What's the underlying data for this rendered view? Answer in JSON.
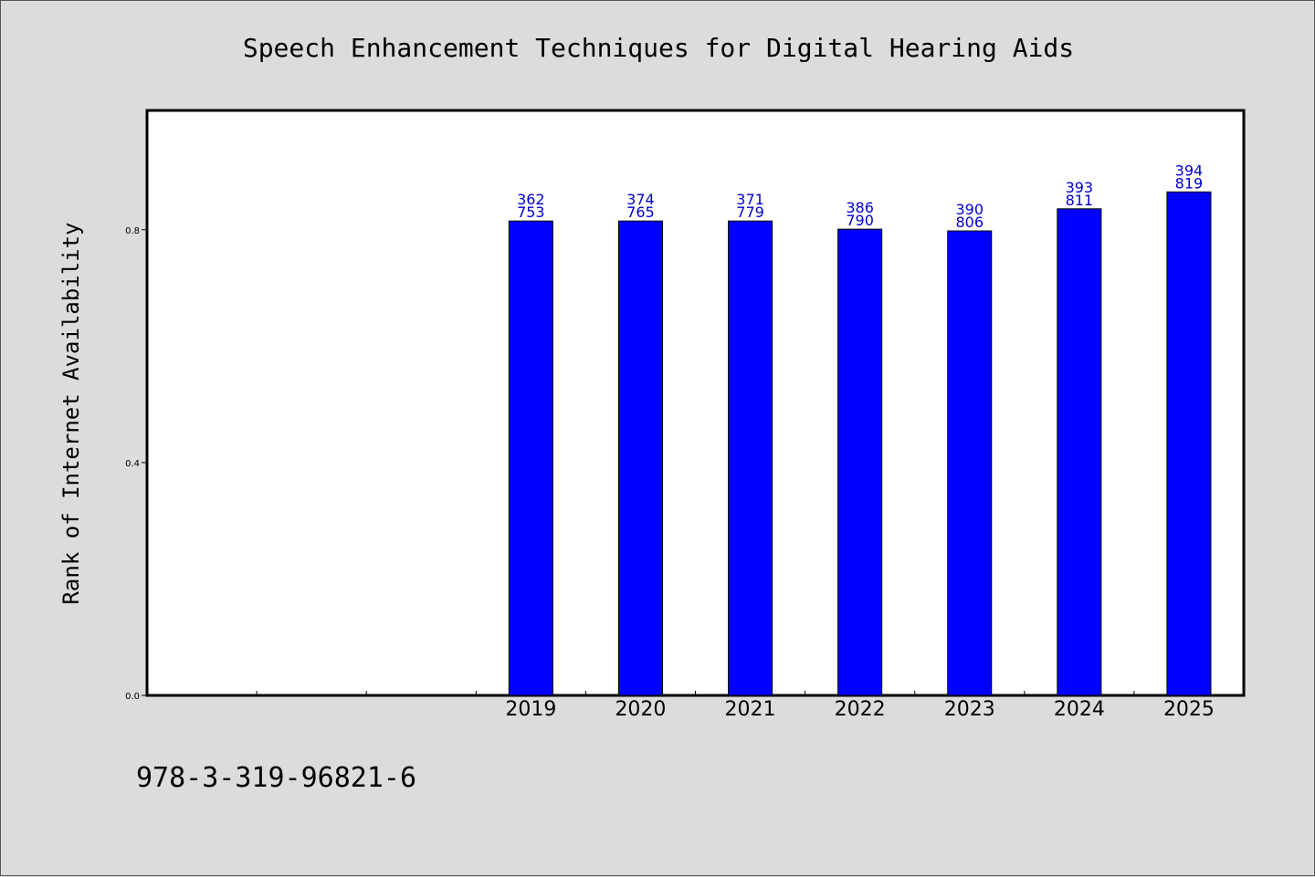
{
  "chart_data": {
    "type": "bar",
    "title": "Speech Enhancement Techniques for Digital Hearing Aids",
    "ylabel": "Rank of Internet Availability",
    "xlabel": "",
    "slots": [
      "",
      "",
      "",
      "2019",
      "2020",
      "2021",
      "2022",
      "2023",
      "2024",
      "2025"
    ],
    "categories": [
      "2019",
      "2020",
      "2021",
      "2022",
      "2023",
      "2024",
      "2025"
    ],
    "values": [
      0.815,
      0.815,
      0.815,
      0.801,
      0.798,
      0.836,
      0.865
    ],
    "bar_labels": [
      [
        "362",
        "753"
      ],
      [
        "374",
        "765"
      ],
      [
        "371",
        "779"
      ],
      [
        "386",
        "790"
      ],
      [
        "390",
        "806"
      ],
      [
        "393",
        "811"
      ],
      [
        "394",
        "819"
      ]
    ],
    "yticks": [
      "0.0",
      "0.4",
      "0.8"
    ],
    "ytick_values": [
      0.0,
      0.4,
      0.8
    ],
    "ylim": [
      0,
      1.005
    ],
    "grid": false,
    "legend": "none",
    "colors": {
      "bar_fill": "#0000ff",
      "bar_edge": "#000000",
      "bar_label": "#0000cc",
      "plot_background": "#ffffff",
      "page_background": "#dcdcdc"
    }
  },
  "footer": {
    "isbn": "978-3-319-96821-6"
  }
}
